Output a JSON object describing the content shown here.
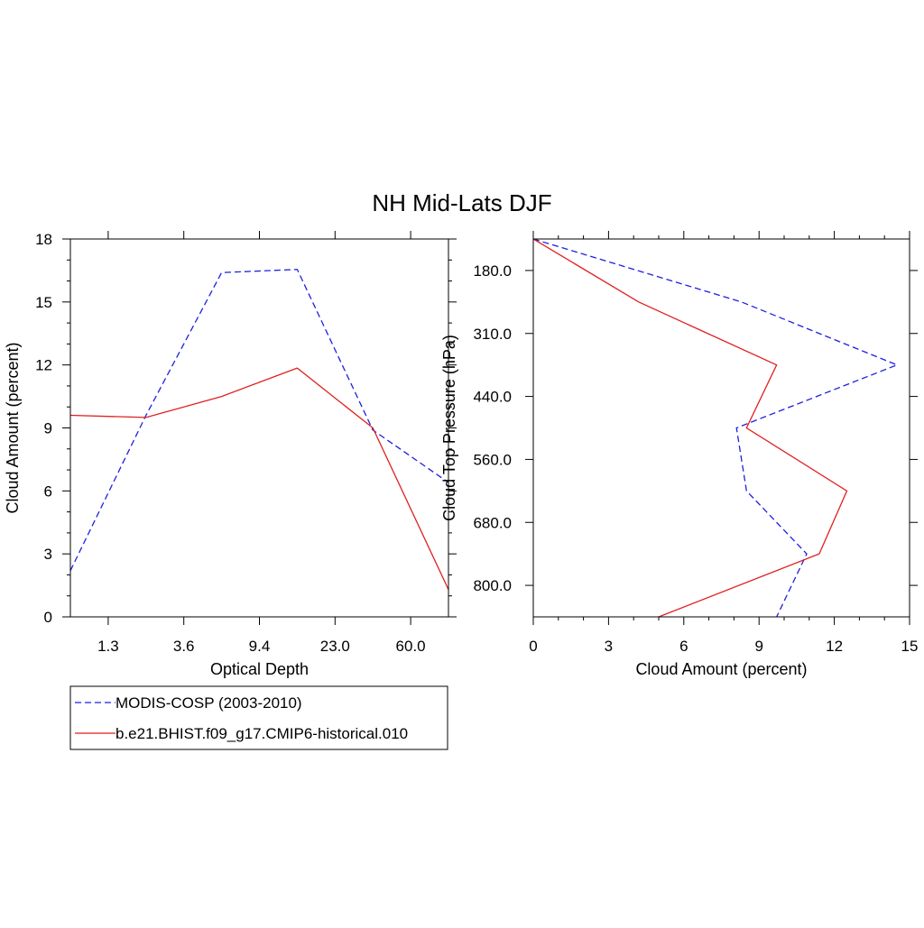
{
  "title": "NH Mid-Lats DJF",
  "colors": {
    "obs": "#1f1fe0",
    "model": "#e01f1f",
    "axis": "#000000"
  },
  "legend": {
    "entries": [
      {
        "label": "MODIS-COSP (2003-2010)",
        "style": "dashed",
        "color": "#1f1fe0"
      },
      {
        "label": "b.e21.BHIST.f09_g17.CMIP6-historical.010",
        "style": "solid",
        "color": "#e01f1f"
      }
    ]
  },
  "chart_data": [
    {
      "type": "line",
      "xlabel": "Optical Depth",
      "ylabel": "Cloud Amount (percent)",
      "x_bin_index": [
        0,
        1,
        2,
        3,
        4,
        5,
        6
      ],
      "xticks": {
        "positions": [
          0.5,
          1.5,
          2.5,
          3.5,
          4.5
        ],
        "labels": [
          "1.3",
          "3.6",
          "9.4",
          "23.0",
          "60.0"
        ]
      },
      "xlim": [
        0,
        5
      ],
      "ylim": [
        0,
        18
      ],
      "yticks": [
        "0",
        "3",
        "6",
        "9",
        "12",
        "15",
        "18"
      ],
      "series": [
        {
          "name": "MODIS-COSP (2003-2010)",
          "style": "dashed",
          "color": "#1f1fe0",
          "x": [
            0,
            1,
            2,
            3,
            4,
            5
          ],
          "y": [
            2.2,
            9.6,
            16.4,
            16.55,
            8.9,
            6.4
          ]
        },
        {
          "name": "b.e21.BHIST.f09_g17.CMIP6-historical.010",
          "style": "solid",
          "color": "#e01f1f",
          "x": [
            0,
            1,
            2,
            3,
            4,
            5
          ],
          "y": [
            9.6,
            9.5,
            10.5,
            11.85,
            9.0,
            1.3
          ]
        }
      ]
    },
    {
      "type": "line",
      "orientation": "horizontal",
      "xlabel": "Cloud Amount (percent)",
      "ylabel": "Cloud Top Pressure (hPa)",
      "xlim": [
        0,
        15
      ],
      "xticks": [
        "0",
        "3",
        "6",
        "9",
        "12",
        "15"
      ],
      "ylim_bin": [
        0,
        6
      ],
      "yticks": {
        "positions": [
          0.5,
          1.5,
          2.5,
          3.5,
          4.5,
          5.5
        ],
        "labels": [
          "180.0",
          "310.0",
          "440.0",
          "560.0",
          "680.0",
          "800.0"
        ]
      },
      "series": [
        {
          "name": "MODIS-COSP (2003-2010)",
          "style": "dashed",
          "color": "#1f1fe0",
          "level": [
            0,
            1,
            2,
            3,
            4,
            5,
            6
          ],
          "value": [
            0.0,
            8.3,
            14.5,
            8.1,
            8.5,
            10.9,
            9.7
          ]
        },
        {
          "name": "b.e21.BHIST.f09_g17.CMIP6-historical.010",
          "style": "solid",
          "color": "#e01f1f",
          "level": [
            0,
            1,
            2,
            3,
            4,
            5,
            6
          ],
          "value": [
            0.0,
            4.2,
            9.7,
            8.5,
            12.5,
            11.4,
            5.0
          ]
        }
      ]
    }
  ]
}
